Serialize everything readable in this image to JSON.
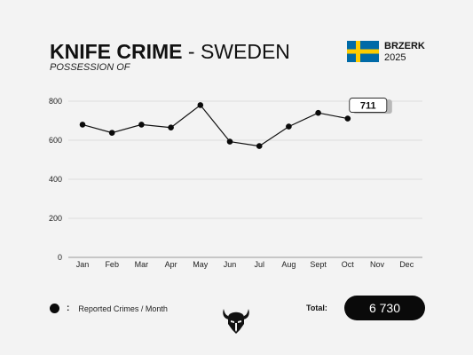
{
  "header": {
    "title_bold": "KNIFE CRIME",
    "title_rest": "- SWEDEN",
    "subtitle": "POSSESSION OF"
  },
  "brand": {
    "name": "BRZERK",
    "year": "2025",
    "flag_icon": "sweden-flag-icon",
    "flag_colors": {
      "blue": "#006aa7",
      "yellow": "#fecc00"
    }
  },
  "chart_data": {
    "type": "line",
    "categories": [
      "Jan",
      "Feb",
      "Mar",
      "Apr",
      "May",
      "Jun",
      "Jul",
      "Aug",
      "Sept",
      "Oct",
      "Nov",
      "Dec"
    ],
    "series": [
      {
        "name": "Reported Crimes / Month",
        "values": [
          680,
          638,
          680,
          665,
          780,
          593,
          570,
          670,
          740,
          711,
          null,
          null
        ]
      }
    ],
    "title": "KNIFE CRIME - SWEDEN",
    "subtitle": "POSSESSION OF",
    "xlabel": "",
    "ylabel": "",
    "ylim": [
      0,
      800
    ],
    "yticks": [
      0,
      200,
      400,
      600,
      800
    ],
    "grid": true,
    "line_color": "#111111",
    "callout": {
      "category": "Oct",
      "label": "711"
    }
  },
  "legend": {
    "marker_icon": "dot-icon",
    "separator": ":",
    "label": "Reported Crimes / Month"
  },
  "logo_icon": "horned-helmet-logo-icon",
  "total": {
    "label": "Total:",
    "value": "6 730"
  }
}
